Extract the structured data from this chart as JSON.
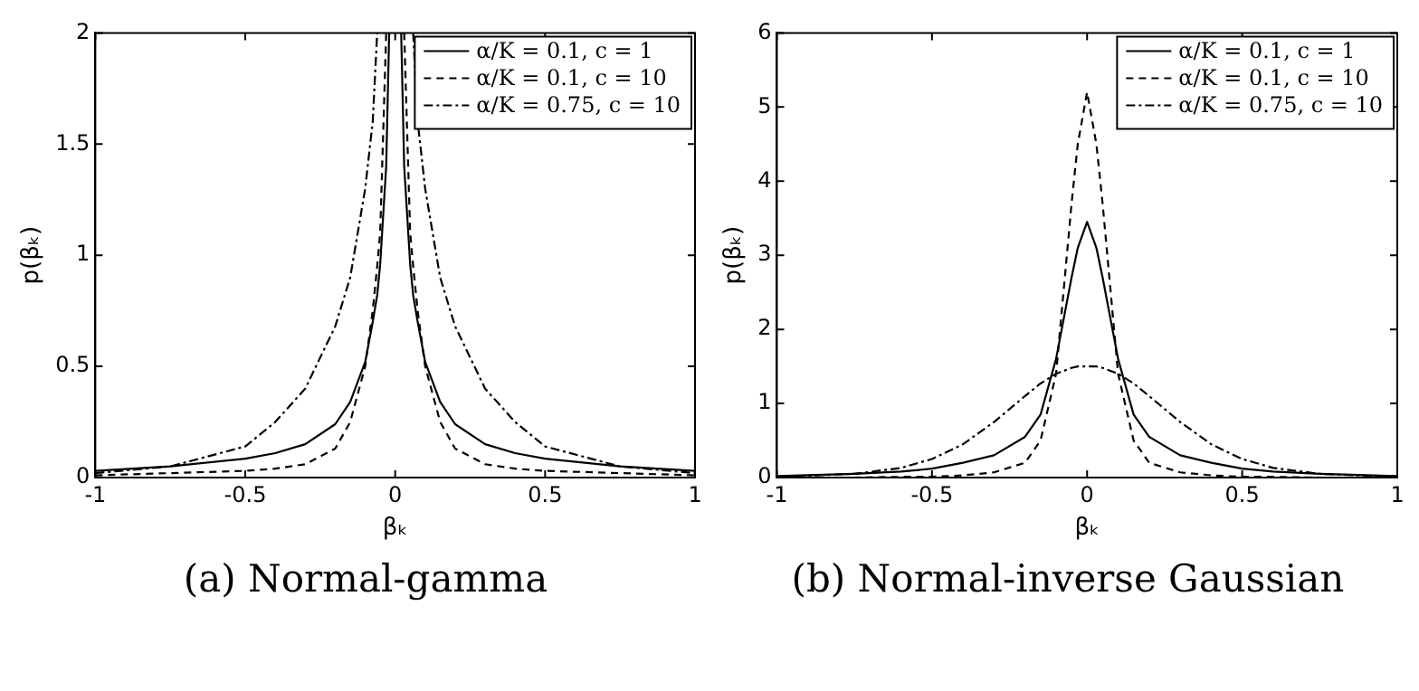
{
  "chart_data": [
    {
      "type": "line",
      "xlabel": "βₖ",
      "ylabel": "p(βₖ)",
      "xlim": [
        -1,
        1
      ],
      "xticks": [
        -1,
        -0.5,
        0,
        0.5,
        1
      ],
      "ylim": [
        0,
        2
      ],
      "yticks": [
        0,
        0.5,
        1,
        1.5,
        2
      ],
      "grid": false,
      "legend": "top right",
      "marker": "none",
      "annotations": [
        "(a) Normal-gamma"
      ],
      "x": [
        -1,
        -0.75,
        -0.5,
        -0.4,
        -0.3,
        -0.2,
        -0.15,
        -0.1,
        -0.075,
        -0.06,
        -0.05,
        -0.03,
        -0.02,
        0,
        0.02,
        0.03,
        0.05,
        0.06,
        0.075,
        0.1,
        0.15,
        0.2,
        0.3,
        0.4,
        0.5,
        0.75,
        1
      ],
      "series": [
        {
          "name": "α/K = 0.1, c = 1",
          "color": "#000000",
          "line_style": "solid",
          "values": [
            0.03,
            0.05,
            0.085,
            0.11,
            0.15,
            0.24,
            0.34,
            0.52,
            0.7,
            0.82,
            0.96,
            1.4,
            2,
            null,
            2,
            1.4,
            0.96,
            0.82,
            0.7,
            0.52,
            0.34,
            0.24,
            0.15,
            0.11,
            0.085,
            0.05,
            0.03
          ]
        },
        {
          "name": "α/K = 0.1, c = 10",
          "color": "#000000",
          "line_style": "dashed",
          "values": [
            0.01,
            0.02,
            0.03,
            0.04,
            0.06,
            0.13,
            0.25,
            0.5,
            0.75,
            0.95,
            1.1,
            2,
            null,
            null,
            null,
            2,
            1.1,
            0.95,
            0.75,
            0.5,
            0.25,
            0.13,
            0.06,
            0.04,
            0.03,
            0.02,
            0.01
          ]
        },
        {
          "name": "α/K = 0.75, c = 10",
          "color": "#000000",
          "line_style": "dotted",
          "values": [
            0.02,
            0.05,
            0.14,
            0.25,
            0.4,
            0.68,
            0.9,
            1.3,
            1.6,
            2,
            null,
            null,
            null,
            null,
            null,
            null,
            null,
            2,
            1.6,
            1.3,
            0.9,
            0.68,
            0.4,
            0.25,
            0.14,
            0.05,
            0.02
          ]
        }
      ]
    },
    {
      "type": "line",
      "xlabel": "βₖ",
      "ylabel": "p(βₖ)",
      "xlim": [
        -1,
        1
      ],
      "xticks": [
        -1,
        -0.5,
        0,
        0.5,
        1
      ],
      "ylim": [
        0,
        6
      ],
      "yticks": [
        0,
        1,
        2,
        3,
        4,
        5,
        6
      ],
      "grid": false,
      "legend": "top right",
      "marker": "none",
      "annotations": [
        "(b) Normal-inverse Gaussian"
      ],
      "x": [
        -1,
        -0.75,
        -0.6,
        -0.5,
        -0.4,
        -0.3,
        -0.2,
        -0.15,
        -0.1,
        -0.05,
        -0.03,
        0,
        0.03,
        0.05,
        0.1,
        0.15,
        0.2,
        0.3,
        0.4,
        0.5,
        0.6,
        0.75,
        1
      ],
      "series": [
        {
          "name": "α/K = 0.1, c = 1",
          "color": "#000000",
          "line_style": "solid",
          "values": [
            0.02,
            0.05,
            0.08,
            0.12,
            0.2,
            0.3,
            0.55,
            0.85,
            1.6,
            2.7,
            3.1,
            3.45,
            3.1,
            2.7,
            1.6,
            0.85,
            0.55,
            0.3,
            0.2,
            0.12,
            0.08,
            0.05,
            0.02
          ]
        },
        {
          "name": "α/K = 0.1, c = 10",
          "color": "#000000",
          "line_style": "dashed",
          "values": [
            0,
            0,
            0.01,
            0.01,
            0.03,
            0.07,
            0.2,
            0.5,
            1.4,
            3.7,
            4.5,
            5.2,
            4.5,
            3.7,
            1.4,
            0.5,
            0.2,
            0.07,
            0.03,
            0.01,
            0.01,
            0,
            0
          ]
        },
        {
          "name": "α/K = 0.75, c = 10",
          "color": "#000000",
          "line_style": "dotted",
          "values": [
            0.01,
            0.05,
            0.13,
            0.25,
            0.45,
            0.75,
            1.1,
            1.27,
            1.4,
            1.48,
            1.5,
            1.5,
            1.5,
            1.48,
            1.4,
            1.27,
            1.1,
            0.75,
            0.45,
            0.25,
            0.13,
            0.05,
            0.01
          ]
        }
      ]
    }
  ]
}
